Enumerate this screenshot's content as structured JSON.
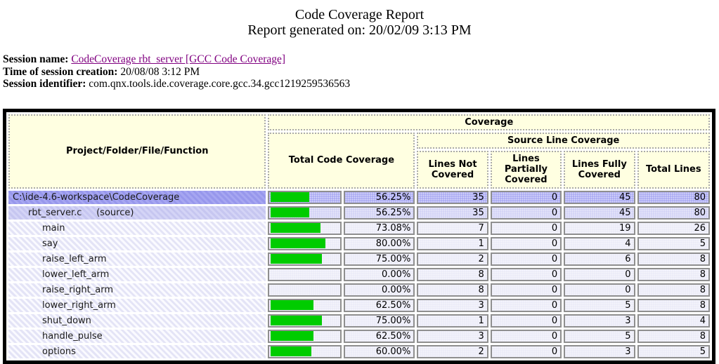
{
  "page": {
    "title": "Code Coverage Report",
    "subtitle": "Report generated on: 20/02/09 3:13 PM"
  },
  "session": {
    "name_label": "Session name: ",
    "name_link": "CodeCoverage rbt_server [GCC Code Coverage]",
    "creation_label": "Time of session creation: ",
    "creation_value": "20/08/08 3:12 PM",
    "identifier_label": "Session identifier: ",
    "identifier_value": "com.qnx.tools.ide.coverage.core.gcc.34.gcc1219259536563"
  },
  "table": {
    "headers": {
      "project": "Project/Folder/File/Function",
      "coverage": "Coverage",
      "total_code_coverage": "Total Code Coverage",
      "source_line_coverage": "Source Line Coverage",
      "lines_not_covered": "Lines Not Covered",
      "lines_partially_covered": "Lines Partially Covered",
      "lines_fully_covered": "Lines Fully Covered",
      "total_lines": "Total Lines"
    },
    "colors": {
      "bar_green": "#00cc00",
      "row_project_bg": "#9a9aee",
      "row_file_bg": "#c9c9f2",
      "row_function_bg": "#e9e9f8",
      "header_bg": "#ffffe1",
      "link": "#800080"
    },
    "rows": [
      {
        "label": "C:\\ide-4.6-workspace\\CodeCoverage",
        "level": 0,
        "type": "project",
        "coverage": "56.25%",
        "bar_pct": 56.25,
        "lines_not_covered": 35,
        "lines_partially_covered": 0,
        "lines_fully_covered": 45,
        "total_lines": 80
      },
      {
        "label": "rbt_server.c     (source)",
        "level": 1,
        "type": "file",
        "coverage": "56.25%",
        "bar_pct": 56.25,
        "lines_not_covered": 35,
        "lines_partially_covered": 0,
        "lines_fully_covered": 45,
        "total_lines": 80
      },
      {
        "label": "main",
        "level": 2,
        "type": "function",
        "coverage": "73.08%",
        "bar_pct": 73.08,
        "lines_not_covered": 7,
        "lines_partially_covered": 0,
        "lines_fully_covered": 19,
        "total_lines": 26
      },
      {
        "label": "say",
        "level": 2,
        "type": "function",
        "coverage": "80.00%",
        "bar_pct": 80,
        "lines_not_covered": 1,
        "lines_partially_covered": 0,
        "lines_fully_covered": 4,
        "total_lines": 5
      },
      {
        "label": "raise_left_arm",
        "level": 2,
        "type": "function",
        "coverage": "75.00%",
        "bar_pct": 75,
        "lines_not_covered": 2,
        "lines_partially_covered": 0,
        "lines_fully_covered": 6,
        "total_lines": 8
      },
      {
        "label": "lower_left_arm",
        "level": 2,
        "type": "function",
        "coverage": "0.00%",
        "bar_pct": 0,
        "lines_not_covered": 8,
        "lines_partially_covered": 0,
        "lines_fully_covered": 0,
        "total_lines": 8
      },
      {
        "label": "raise_right_arm",
        "level": 2,
        "type": "function",
        "coverage": "0.00%",
        "bar_pct": 0,
        "lines_not_covered": 8,
        "lines_partially_covered": 0,
        "lines_fully_covered": 0,
        "total_lines": 8
      },
      {
        "label": "lower_right_arm",
        "level": 2,
        "type": "function",
        "coverage": "62.50%",
        "bar_pct": 62.5,
        "lines_not_covered": 3,
        "lines_partially_covered": 0,
        "lines_fully_covered": 5,
        "total_lines": 8
      },
      {
        "label": "shut_down",
        "level": 2,
        "type": "function",
        "coverage": "75.00%",
        "bar_pct": 75,
        "lines_not_covered": 1,
        "lines_partially_covered": 0,
        "lines_fully_covered": 3,
        "total_lines": 4
      },
      {
        "label": "handle_pulse",
        "level": 2,
        "type": "function",
        "coverage": "62.50%",
        "bar_pct": 62.5,
        "lines_not_covered": 3,
        "lines_partially_covered": 0,
        "lines_fully_covered": 5,
        "total_lines": 8
      },
      {
        "label": "options",
        "level": 2,
        "type": "function",
        "coverage": "60.00%",
        "bar_pct": 60,
        "lines_not_covered": 2,
        "lines_partially_covered": 0,
        "lines_fully_covered": 3,
        "total_lines": 5
      }
    ]
  }
}
